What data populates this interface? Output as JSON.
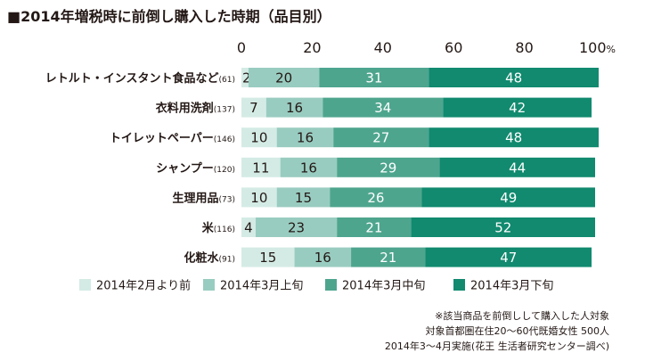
{
  "header": {
    "title": "■2014年増税時に前倒し購入した時期（品目別）"
  },
  "colors": {
    "c1": "#d4ebe5",
    "c2": "#99ccc0",
    "c3": "#4ea58e",
    "c4": "#118a6f",
    "text": "#231815"
  },
  "chart_data": {
    "type": "bar",
    "orientation": "horizontal",
    "stacked": true,
    "title": "2014年増税時に前倒し購入した時期（品目別）",
    "xlim": [
      0,
      100
    ],
    "x_ticks": [
      "0",
      "20",
      "40",
      "60",
      "80"
    ],
    "x_tick_last": "100",
    "x_tick_unit": "%",
    "categories": [
      {
        "name": "レトルト・インスタント食品など",
        "n": "(61)"
      },
      {
        "name": "衣料用洗剤",
        "n": "(137)"
      },
      {
        "name": "トイレットペーパー",
        "n": "(146)"
      },
      {
        "name": "シャンプー",
        "n": "(120)"
      },
      {
        "name": "生理用品",
        "n": "(73)"
      },
      {
        "name": "米",
        "n": "(116)"
      },
      {
        "name": "化粧水",
        "n": "(91)"
      }
    ],
    "series": [
      {
        "name": "2014年2月より前",
        "values": [
          2,
          7,
          10,
          11,
          10,
          4,
          15
        ]
      },
      {
        "name": "2014年3月上旬",
        "values": [
          20,
          16,
          16,
          16,
          15,
          23,
          16
        ]
      },
      {
        "name": "2014年3月中旬",
        "values": [
          31,
          34,
          27,
          29,
          26,
          21,
          21
        ]
      },
      {
        "name": "2014年3月下旬",
        "values": [
          48,
          42,
          48,
          44,
          49,
          52,
          47
        ]
      }
    ]
  },
  "notes": [
    "※該当商品を前倒しして購入した人対象",
    "対象首都圏在住20～60代既婚女性 500人",
    "2014年3～4月実施(花王 生活者研究センター調べ)"
  ]
}
